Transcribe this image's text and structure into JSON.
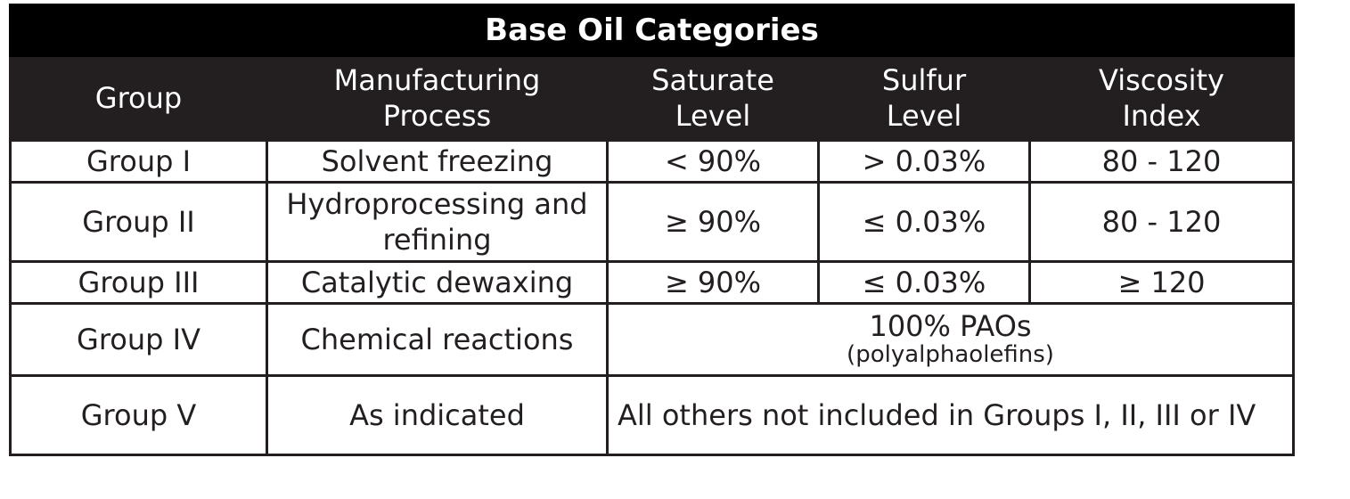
{
  "chart_data": {
    "type": "table",
    "title": "Base Oil Categories",
    "columns": [
      "Group",
      "Manufacturing Process",
      "Saturate Level",
      "Sulfur Level",
      "Viscosity Index"
    ],
    "rows": [
      {
        "group": "Group I",
        "process": "Solvent freezing",
        "saturate": "< 90%",
        "sulfur": "> 0.03%",
        "viscosity": "80 - 120"
      },
      {
        "group": "Group II",
        "process": "Hydroprocessing and refining",
        "saturate": "≥ 90%",
        "sulfur": "≤ 0.03%",
        "viscosity": "80 - 120"
      },
      {
        "group": "Group III",
        "process": "Catalytic dewaxing",
        "saturate": "≥ 90%",
        "sulfur": "≤ 0.03%",
        "viscosity": "≥ 120"
      },
      {
        "group": "Group IV",
        "process": "Chemical reactions",
        "merged": "100% PAOs",
        "merged_note": "(polyalphaolefins)"
      },
      {
        "group": "Group V",
        "process": "As indicated",
        "merged": "All others not included in Groups I, II, III or IV"
      }
    ]
  },
  "colors": {
    "title_bg": "#000000",
    "header_bg": "#231f20",
    "header_text": "#ffffff",
    "border": "#231f20",
    "body_text": "#231f20"
  }
}
